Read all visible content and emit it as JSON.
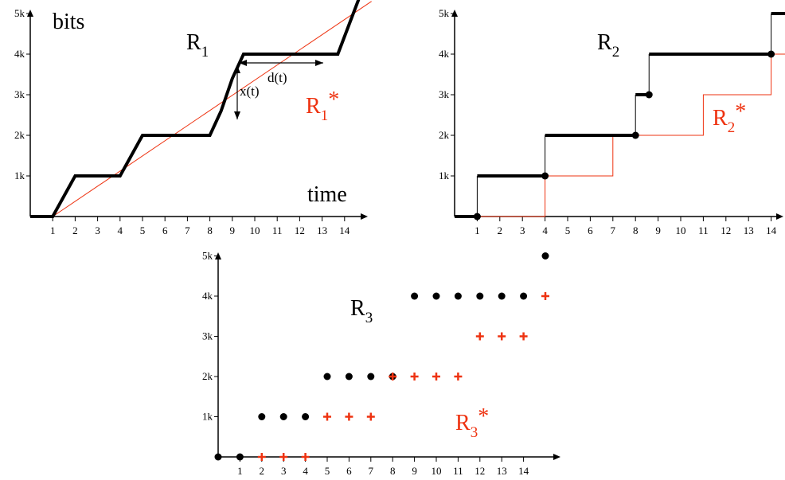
{
  "colors": {
    "black": "#000000",
    "red": "#ee3311"
  },
  "panels": [
    {
      "id": "r1",
      "ylabel": "bits",
      "xlabel": "time",
      "title_main": "R",
      "title_sub": "1",
      "ref_main": "R",
      "ref_sub": "1",
      "ref_sup": "*",
      "x_ticks": [
        "1",
        "2",
        "3",
        "4",
        "5",
        "6",
        "7",
        "8",
        "9",
        "10",
        "11",
        "12",
        "13",
        "14"
      ],
      "y_ticks": [
        "1k",
        "2k",
        "3k",
        "4k",
        "5k"
      ],
      "ann_x": "x(t)",
      "ann_d": "d(t)",
      "series": {
        "R1": [
          [
            0,
            0
          ],
          [
            1,
            0
          ],
          [
            2,
            1
          ],
          [
            4,
            1
          ],
          [
            5,
            2
          ],
          [
            8,
            2
          ],
          [
            8.5,
            2.6
          ],
          [
            9,
            3.4
          ],
          [
            9.5,
            4
          ],
          [
            13.7,
            4
          ],
          [
            14.8,
            5.6
          ]
        ],
        "R1_star": [
          [
            1,
            0
          ],
          [
            15.2,
            5.3
          ]
        ]
      }
    },
    {
      "id": "r2",
      "title_main": "R",
      "title_sub": "2",
      "ref_main": "R",
      "ref_sub": "2",
      "ref_sup": "*",
      "x_ticks": [
        "1",
        "2",
        "3",
        "4",
        "5",
        "6",
        "7",
        "8",
        "9",
        "10",
        "11",
        "12",
        "13",
        "14"
      ],
      "y_ticks": [
        "1k",
        "2k",
        "3k",
        "4k",
        "5k"
      ],
      "series": {
        "R2_steps": [
          [
            0,
            0
          ],
          [
            1,
            0
          ],
          [
            1,
            1
          ],
          [
            4,
            1
          ],
          [
            4,
            2
          ],
          [
            8,
            2
          ],
          [
            8,
            3
          ],
          [
            8.6,
            3
          ],
          [
            8.6,
            4
          ],
          [
            14,
            4
          ],
          [
            14,
            5
          ],
          [
            15,
            5
          ]
        ],
        "R2_points": [
          [
            1,
            0
          ],
          [
            4,
            1
          ],
          [
            8,
            2
          ],
          [
            8.6,
            3
          ],
          [
            14,
            4
          ]
        ],
        "R2_star": [
          [
            0,
            0
          ],
          [
            4,
            0
          ],
          [
            4,
            1
          ],
          [
            7,
            1
          ],
          [
            7,
            2
          ],
          [
            11,
            2
          ],
          [
            11,
            3
          ],
          [
            14,
            3
          ],
          [
            14,
            4
          ],
          [
            15,
            4
          ]
        ]
      }
    },
    {
      "id": "r3",
      "title_main": "R",
      "title_sub": "3",
      "ref_main": "R",
      "ref_sub": "3",
      "ref_sup": "*",
      "x_ticks": [
        "1",
        "2",
        "3",
        "4",
        "5",
        "6",
        "7",
        "8",
        "9",
        "10",
        "11",
        "12",
        "13",
        "14"
      ],
      "y_ticks": [
        "1k",
        "2k",
        "3k",
        "4k",
        "5k"
      ],
      "series": {
        "R3": [
          [
            0,
            0
          ],
          [
            1,
            0
          ],
          [
            2,
            1
          ],
          [
            3,
            1
          ],
          [
            4,
            1
          ],
          [
            5,
            2
          ],
          [
            6,
            2
          ],
          [
            7,
            2
          ],
          [
            8,
            2
          ],
          [
            9,
            4
          ],
          [
            10,
            4
          ],
          [
            11,
            4
          ],
          [
            12,
            4
          ],
          [
            13,
            4
          ],
          [
            14,
            4
          ],
          [
            15,
            5
          ]
        ],
        "R3_star": [
          [
            2,
            0
          ],
          [
            3,
            0
          ],
          [
            4,
            0
          ],
          [
            5,
            1
          ],
          [
            6,
            1
          ],
          [
            7,
            1
          ],
          [
            8,
            2
          ],
          [
            9,
            2
          ],
          [
            10,
            2
          ],
          [
            11,
            2
          ],
          [
            12,
            3
          ],
          [
            13,
            3
          ],
          [
            14,
            3
          ],
          [
            15,
            4
          ]
        ]
      }
    }
  ]
}
